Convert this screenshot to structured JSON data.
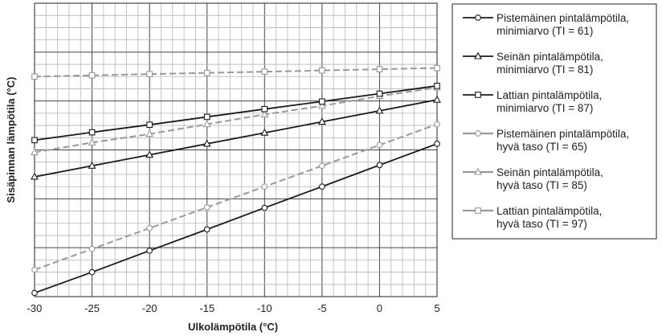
{
  "chart_data": {
    "type": "line",
    "xlabel": "Ulkolämpötila (°C)",
    "ylabel": "Sisäpinnan lämpötila (°C)",
    "xlim": [
      -30,
      5
    ],
    "x_ticks": [
      "-30",
      "-25",
      "-20",
      "-15",
      "-10",
      "-5",
      "0",
      "5"
    ],
    "ylim": [
      0,
      12
    ],
    "y_ticks_labeled": false,
    "grid": true,
    "legend_position": "right",
    "series": [
      {
        "name": "Pistemäinen pintalämpötila, minimiarvo (TI = 61)",
        "legend_lines": [
          "Pistemäinen pintalämpötila,",
          "minimiarvo (TI = 61)"
        ],
        "color": "#1a1a1a",
        "dash": "solid",
        "marker": "circle",
        "x": [
          -30,
          -25,
          -20,
          -15,
          -10,
          -5,
          0,
          5
        ],
        "y": [
          0.15,
          1.0,
          1.88,
          2.75,
          3.63,
          4.5,
          5.38,
          6.25
        ]
      },
      {
        "name": "Seinän pintalämpötila, minimiarvo (TI = 81)",
        "legend_lines": [
          "Seinän pintalämpötila,",
          "minimiarvo (TI = 81)"
        ],
        "color": "#1a1a1a",
        "dash": "solid",
        "marker": "triangle",
        "x": [
          -30,
          -25,
          -20,
          -15,
          -10,
          -5,
          0,
          5
        ],
        "y": [
          4.9,
          5.35,
          5.8,
          6.25,
          6.7,
          7.15,
          7.6,
          8.05
        ]
      },
      {
        "name": "Lattian pintalämpötila, minimiarvo (TI = 87)",
        "legend_lines": [
          "Lattian pintalämpötila,",
          "minimiarvo (TI = 87)"
        ],
        "color": "#1a1a1a",
        "dash": "solid",
        "marker": "square",
        "x": [
          -30,
          -25,
          -20,
          -15,
          -10,
          -5,
          0,
          5
        ],
        "y": [
          6.4,
          6.72,
          7.03,
          7.35,
          7.67,
          7.98,
          8.3,
          8.62
        ]
      },
      {
        "name": "Pistemäinen pintalämpötila, hyvä taso (TI = 65)",
        "legend_lines": [
          "Pistemäinen pintalämpötila,",
          "hyvä taso (TI = 65)"
        ],
        "color": "#999999",
        "dash": "dashed",
        "marker": "circle",
        "x": [
          -30,
          -25,
          -20,
          -15,
          -10,
          -5,
          0,
          5
        ],
        "y": [
          1.1,
          1.95,
          2.8,
          3.65,
          4.5,
          5.35,
          6.2,
          7.05
        ]
      },
      {
        "name": "Seinän pintalämpötila, hyvä taso (TI = 85)",
        "legend_lines": [
          "Seinän pintalämpötila,",
          "hyvä taso (TI = 85)"
        ],
        "color": "#999999",
        "dash": "dashed",
        "marker": "triangle",
        "x": [
          -30,
          -25,
          -20,
          -15,
          -10,
          -5,
          0,
          5
        ],
        "y": [
          5.9,
          6.3,
          6.65,
          7.05,
          7.45,
          7.8,
          8.2,
          8.55
        ]
      },
      {
        "name": "Lattian pintalämpötila, hyvä taso (TI = 97)",
        "legend_lines": [
          "Lattian pintalämpötila,",
          "hyvä taso (TI = 97)"
        ],
        "color": "#999999",
        "dash": "dashed",
        "marker": "square",
        "x": [
          -30,
          -25,
          -20,
          -15,
          -10,
          -5,
          0,
          5
        ],
        "y": [
          9.0,
          9.05,
          9.1,
          9.15,
          9.2,
          9.25,
          9.3,
          9.35
        ]
      }
    ]
  }
}
